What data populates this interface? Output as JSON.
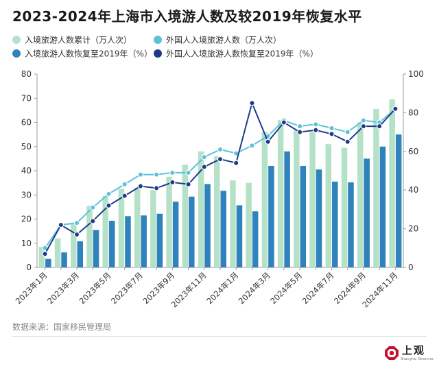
{
  "title": "2023-2024年上海市入境游人数及较2019年恢复水平",
  "source": "数据来源：国家移民管理局",
  "logo": {
    "name": "上观",
    "subtitle": "Shanghai Observer"
  },
  "colors": {
    "bar_total": "#b5e1c9",
    "bar_foreign": "#2f82bb",
    "line_total": "#5bc2d9",
    "line_foreign": "#1e3a8a"
  },
  "chart_data": {
    "type": "bar+line",
    "categories": [
      "2023年1月",
      "2023年2月",
      "2023年3月",
      "2023年4月",
      "2023年5月",
      "2023年6月",
      "2023年7月",
      "2023年8月",
      "2023年9月",
      "2023年10月",
      "2023年11月",
      "2023年12月",
      "2024年1月",
      "2024年2月",
      "2024年3月",
      "2024年4月",
      "2024年5月",
      "2024年6月",
      "2024年7月",
      "2024年8月",
      "2024年9月",
      "2024年10月",
      "2024年11月"
    ],
    "tick_labels": [
      "2023年1月",
      "",
      "2023年3月",
      "",
      "2023年5月",
      "",
      "2023年7月",
      "",
      "2023年9月",
      "",
      "2023年11月",
      "",
      "2024年1月",
      "",
      "2024年3月",
      "",
      "2024年5月",
      "",
      "2024年7月",
      "",
      "2024年9月",
      "",
      "2024年11月"
    ],
    "left_axis": {
      "min": 0,
      "max": 80,
      "ticks": [
        0,
        10,
        20,
        30,
        40,
        50,
        60,
        70,
        80
      ]
    },
    "right_axis": {
      "min": 0,
      "max": 100,
      "ticks": [
        0,
        20,
        40,
        60,
        80,
        100
      ]
    },
    "series": [
      {
        "name": "入境旅游人数累计（万人次）",
        "kind": "bar",
        "axis": "left",
        "values": [
          8.5,
          12,
          18.5,
          25.5,
          29.5,
          32.5,
          33,
          32,
          37.5,
          42.5,
          48,
          46,
          36,
          35,
          56,
          61,
          57,
          56,
          51,
          49.5,
          60,
          65.5,
          69.5
        ]
      },
      {
        "name": "外国人入境旅游人数（万人次）",
        "kind": "bar",
        "axis": "left",
        "values": [
          3.5,
          6.2,
          10.8,
          15.5,
          19.3,
          21.2,
          21.5,
          22.2,
          27.2,
          29.3,
          34.5,
          31.7,
          25.7,
          23.2,
          42,
          48,
          42,
          40.5,
          35.5,
          35.2,
          45,
          50,
          55
        ]
      },
      {
        "name": "入境旅游人数恢复至2019年（%）",
        "kind": "line",
        "axis": "right",
        "values": [
          10,
          22,
          23,
          31,
          38,
          43,
          48,
          48,
          49,
          49,
          57,
          61,
          59,
          63,
          68,
          76,
          73,
          74,
          72,
          70,
          76,
          75,
          82
        ]
      },
      {
        "name": "外国人入境旅游人数恢复至2019年（%）",
        "kind": "line",
        "axis": "right",
        "values": [
          7,
          22,
          17,
          24,
          32,
          37,
          42,
          41,
          44,
          43,
          52,
          56,
          54,
          85,
          65,
          75,
          70,
          71,
          69,
          65,
          73,
          73,
          82
        ]
      }
    ],
    "legend_position": "top",
    "grid": false
  }
}
